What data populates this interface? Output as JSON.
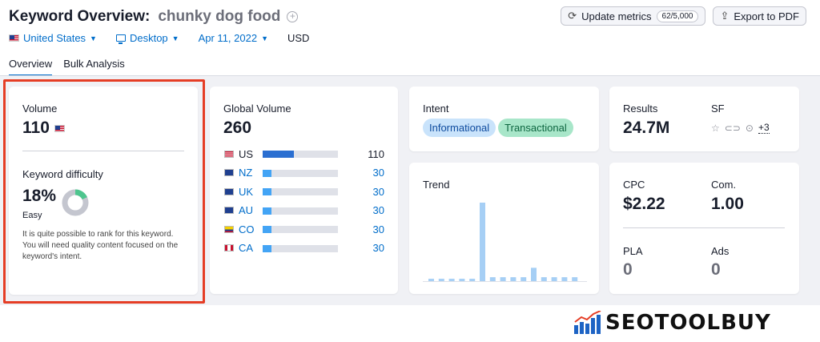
{
  "header": {
    "title": "Keyword Overview:",
    "keyword": "chunky dog food",
    "update_label": "Update metrics",
    "update_badge": "62/5,000",
    "export_label": "Export to PDF"
  },
  "filters": {
    "database": "United States",
    "device": "Desktop",
    "date": "Apr 11, 2022",
    "currency": "USD"
  },
  "tabs": [
    {
      "label": "Overview",
      "active": true
    },
    {
      "label": "Bulk Analysis",
      "active": false
    }
  ],
  "volume_card": {
    "volume_label": "Volume",
    "volume_value": "110",
    "kd_label": "Keyword difficulty",
    "kd_value": "18%",
    "kd_fraction": 0.18,
    "kd_level": "Easy",
    "kd_desc": "It is quite possible to rank for this keyword. You will need quality content focused on the keyword's intent."
  },
  "global_card": {
    "label": "Global Volume",
    "value": "260",
    "rows": [
      {
        "cc": "US",
        "value": "110",
        "fraction": 0.42,
        "fill": "#2b6fd1",
        "link": false
      },
      {
        "cc": "NZ",
        "value": "30",
        "fraction": 0.12,
        "fill": "#43a4f5",
        "link": true
      },
      {
        "cc": "UK",
        "value": "30",
        "fraction": 0.12,
        "fill": "#43a4f5",
        "link": true
      },
      {
        "cc": "AU",
        "value": "30",
        "fraction": 0.12,
        "fill": "#43a4f5",
        "link": true
      },
      {
        "cc": "CO",
        "value": "30",
        "fraction": 0.12,
        "fill": "#43a4f5",
        "link": true
      },
      {
        "cc": "CA",
        "value": "30",
        "fraction": 0.12,
        "fill": "#43a4f5",
        "link": true
      }
    ]
  },
  "intent_card": {
    "label": "Intent",
    "tags": [
      "Informational",
      "Transactional"
    ]
  },
  "trend_card": {
    "label": "Trend",
    "bars": [
      0.03,
      0.03,
      0.03,
      0.03,
      0.03,
      1.0,
      0.05,
      0.05,
      0.05,
      0.05,
      0.17,
      0.05,
      0.05,
      0.05,
      0.05
    ]
  },
  "results_card": {
    "results_label": "Results",
    "results_value": "24.7M",
    "sf_label": "SF",
    "sf_more": "+3"
  },
  "cpc_card": {
    "cpc_label": "CPC",
    "cpc_value": "$2.22",
    "com_label": "Com.",
    "com_value": "1.00",
    "pla_label": "PLA",
    "pla_value": "0",
    "ads_label": "Ads",
    "ads_value": "0"
  },
  "watermark": {
    "text": "SEOTOOLBUY"
  },
  "colors": {
    "accent": "#006dca",
    "highlight": "#e53d25",
    "informational_bg": "#c9e3fb",
    "transactional_bg": "#a8e6c9",
    "trend_bar": "#a6cff5"
  }
}
